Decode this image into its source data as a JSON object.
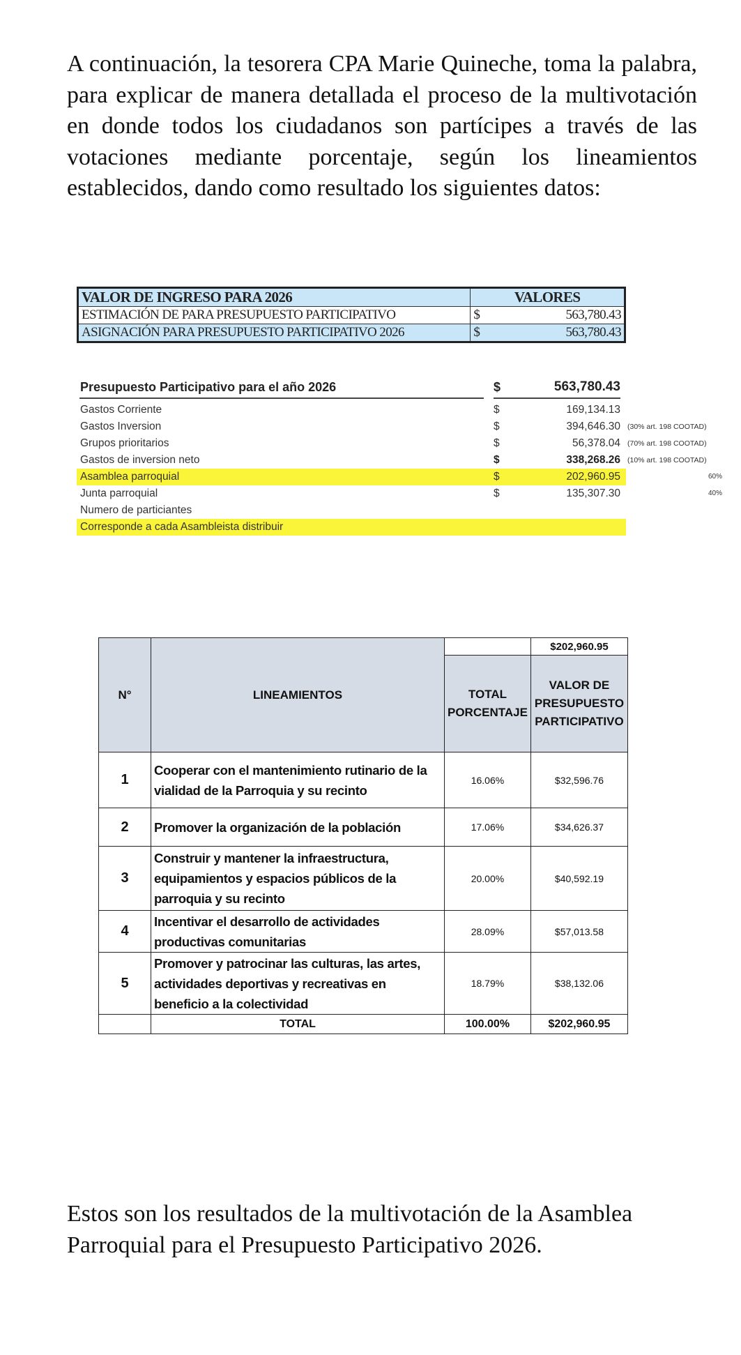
{
  "intro_paragraph": "A continuación, la tesorera CPA Marie Quineche, toma la palabra, para explicar de manera detallada el proceso de la multivotación en donde todos los ciudadanos son partícipes a través de las votaciones mediante porcentaje, según los lineamientos establecidos, dando como resultado los siguientes datos:",
  "income_table": {
    "header": [
      "VALOR DE INGRESO PARA 2026",
      "VALORES"
    ],
    "rows": [
      {
        "label": "ESTIMACIÓN DE PARA PRESUPUESTO PARTICIPATIVO",
        "currency": "$",
        "value": "563,780.43"
      },
      {
        "label": "ASIGNACIÓN PARA PRESUPUESTO PARTICIPATIVO 2026",
        "currency": "$",
        "value": "563,780.43"
      }
    ]
  },
  "budget": {
    "title": "Presupuesto Participativo para el año 2026",
    "title_currency": "$",
    "title_value": "563,780.43",
    "rows": [
      {
        "label": "Gastos Corriente",
        "currency": "$",
        "value": "169,134.13",
        "note": "",
        "percent": ""
      },
      {
        "label": "Gastos Inversion",
        "currency": "$",
        "value": "394,646.30",
        "note": "(30% art. 198 COOTAD)",
        "percent": ""
      },
      {
        "label": "Grupos prioritarios",
        "currency": "$",
        "value": "56,378.04",
        "note": "(70% art. 198 COOTAD)",
        "percent": ""
      },
      {
        "label": "Gastos de inversion neto",
        "currency": "$",
        "value": "338,268.26",
        "note": "(10% art. 198 COOTAD)",
        "percent": ""
      },
      {
        "label": "Asamblea parroquial",
        "currency": "$",
        "value": "202,960.95",
        "note": "",
        "percent": "60%"
      },
      {
        "label": "Junta parroquial",
        "currency": "$",
        "value": "135,307.30",
        "note": "",
        "percent": "40%"
      },
      {
        "label": "Numero de particiantes",
        "currency": "",
        "value": "",
        "note": "",
        "percent": ""
      },
      {
        "label": "Corresponde a cada Asambleista distribuir",
        "currency": "",
        "value": "",
        "note": "",
        "percent": ""
      }
    ],
    "highlight_color": "#fbf53a"
  },
  "guidelines_table": {
    "top_value": "$202,960.95",
    "headers": [
      "N°",
      "LINEAMIENTOS",
      "TOTAL PORCENTAJE",
      "VALOR DE PRESUPUESTO PARTICIPATIVO"
    ],
    "rows": [
      {
        "n": "1",
        "text": "Cooperar con el mantenimiento rutinario de la vialidad de la Parroquia y su recinto",
        "percent": "16.06%",
        "value": "$32,596.76"
      },
      {
        "n": "2",
        "text": "Promover la organización de la población",
        "percent": "17.06%",
        "value": "$34,626.37"
      },
      {
        "n": "3",
        "text": "Construir y mantener la infraestructura, equipamientos y espacios públicos de la parroquia y su recinto",
        "percent": "20.00%",
        "value": "$40,592.19"
      },
      {
        "n": "4",
        "text": "Incentivar el desarrollo de actividades productivas comunitarias",
        "percent": "28.09%",
        "value": "$57,013.58"
      },
      {
        "n": "5",
        "text": "Promover y patrocinar las culturas, las artes, actividades deportivas y recreativas en beneficio a la colectividad",
        "percent": "18.79%",
        "value": "$38,132.06"
      }
    ],
    "total": {
      "label": "TOTAL",
      "percent": "100.00%",
      "value": "$202,960.95"
    },
    "header_color": "#d6dce5"
  },
  "closing_paragraph": "Estos son los resultados de la multivotación de la Asamblea Parroquial para el Presupuesto Participativo 2026."
}
